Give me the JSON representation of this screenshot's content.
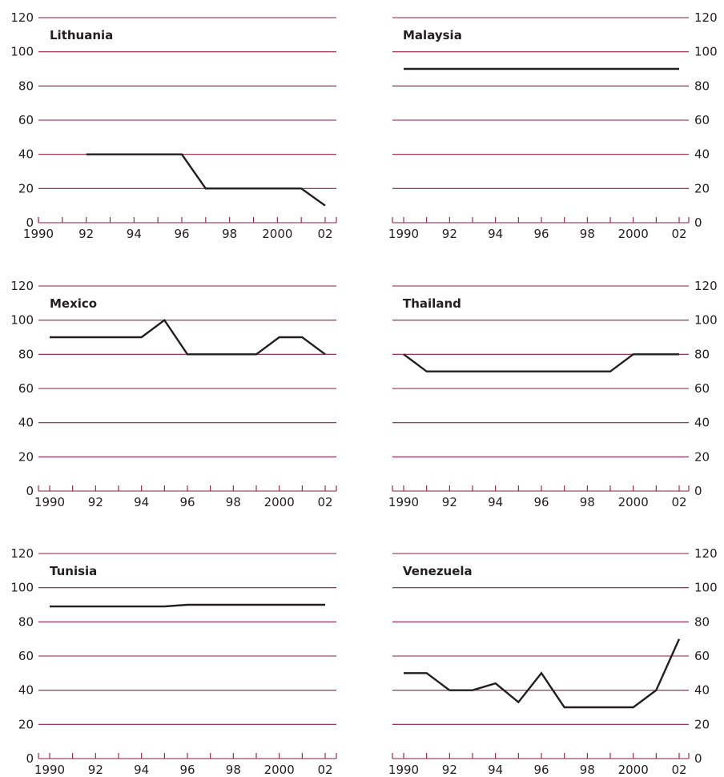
{
  "colors": {
    "gridline": "#8c1d40",
    "series": "#231f20",
    "text": "#231f20",
    "background": "#ffffff"
  },
  "chart_data": [
    {
      "type": "line",
      "title": "Lithuania",
      "y_axis_side": "left",
      "ylim": [
        0,
        120
      ],
      "y_ticks": [
        "0",
        "20",
        "40",
        "60",
        "80",
        "100",
        "120"
      ],
      "x_range": [
        1990,
        2002
      ],
      "x_ticks": [
        {
          "year": 1990,
          "label": "1990"
        },
        {
          "year": 1992,
          "label": "92"
        },
        {
          "year": 1994,
          "label": "94"
        },
        {
          "year": 1996,
          "label": "96"
        },
        {
          "year": 1998,
          "label": "98"
        },
        {
          "year": 2000,
          "label": "2000"
        },
        {
          "year": 2002,
          "label": "02"
        }
      ],
      "grid": true,
      "series": [
        {
          "x": [
            1992,
            1993,
            1994,
            1995,
            1996,
            1997,
            1998,
            1999,
            2000,
            2001,
            2002
          ],
          "y": [
            40,
            40,
            40,
            40,
            40,
            20,
            20,
            20,
            20,
            20,
            10
          ]
        }
      ]
    },
    {
      "type": "line",
      "title": "Malaysia",
      "y_axis_side": "right",
      "ylim": [
        0,
        120
      ],
      "y_ticks": [
        "0",
        "20",
        "40",
        "60",
        "80",
        "100",
        "120"
      ],
      "x_range": [
        1990,
        2002
      ],
      "x_ticks": [
        {
          "year": 1990,
          "label": "1990"
        },
        {
          "year": 1992,
          "label": "92"
        },
        {
          "year": 1994,
          "label": "94"
        },
        {
          "year": 1996,
          "label": "96"
        },
        {
          "year": 1998,
          "label": "98"
        },
        {
          "year": 2000,
          "label": "2000"
        },
        {
          "year": 2002,
          "label": "02"
        }
      ],
      "grid": true,
      "series": [
        {
          "x": [
            1990,
            1991,
            1992,
            1993,
            1994,
            1995,
            1996,
            1997,
            1998,
            1999,
            2000,
            2001,
            2002
          ],
          "y": [
            90,
            90,
            90,
            90,
            90,
            90,
            90,
            90,
            90,
            90,
            90,
            90,
            90
          ]
        }
      ]
    },
    {
      "type": "line",
      "title": "Mexico",
      "y_axis_side": "left",
      "ylim": [
        0,
        120
      ],
      "y_ticks": [
        "0",
        "20",
        "40",
        "60",
        "80",
        "100",
        "120"
      ],
      "x_range": [
        1990,
        2002
      ],
      "x_ticks": [
        {
          "year": 1990,
          "label": "1990"
        },
        {
          "year": 1992,
          "label": "92"
        },
        {
          "year": 1994,
          "label": "94"
        },
        {
          "year": 1996,
          "label": "96"
        },
        {
          "year": 1998,
          "label": "98"
        },
        {
          "year": 2000,
          "label": "2000"
        },
        {
          "year": 2002,
          "label": "02"
        }
      ],
      "grid": true,
      "series": [
        {
          "x": [
            1990,
            1991,
            1992,
            1993,
            1994,
            1995,
            1996,
            1997,
            1998,
            1999,
            2000,
            2001,
            2002
          ],
          "y": [
            90,
            90,
            90,
            90,
            90,
            100,
            80,
            80,
            80,
            80,
            90,
            90,
            80
          ]
        }
      ]
    },
    {
      "type": "line",
      "title": "Thailand",
      "y_axis_side": "right",
      "ylim": [
        0,
        120
      ],
      "y_ticks": [
        "0",
        "20",
        "40",
        "60",
        "80",
        "100",
        "120"
      ],
      "x_range": [
        1990,
        2002
      ],
      "x_ticks": [
        {
          "year": 1990,
          "label": "1990"
        },
        {
          "year": 1992,
          "label": "92"
        },
        {
          "year": 1994,
          "label": "94"
        },
        {
          "year": 1996,
          "label": "96"
        },
        {
          "year": 1998,
          "label": "98"
        },
        {
          "year": 2000,
          "label": "2000"
        },
        {
          "year": 2002,
          "label": "02"
        }
      ],
      "grid": true,
      "series": [
        {
          "x": [
            1990,
            1991,
            1992,
            1993,
            1994,
            1995,
            1996,
            1997,
            1998,
            1999,
            2000,
            2001,
            2002
          ],
          "y": [
            80,
            70,
            70,
            70,
            70,
            70,
            70,
            70,
            70,
            70,
            80,
            80,
            80
          ]
        }
      ]
    },
    {
      "type": "line",
      "title": "Tunisia",
      "y_axis_side": "left",
      "ylim": [
        0,
        120
      ],
      "y_ticks": [
        "0",
        "20",
        "40",
        "60",
        "80",
        "100",
        "120"
      ],
      "x_range": [
        1990,
        2002
      ],
      "x_ticks": [
        {
          "year": 1990,
          "label": "1990"
        },
        {
          "year": 1992,
          "label": "92"
        },
        {
          "year": 1994,
          "label": "94"
        },
        {
          "year": 1996,
          "label": "96"
        },
        {
          "year": 1998,
          "label": "98"
        },
        {
          "year": 2000,
          "label": "2000"
        },
        {
          "year": 2002,
          "label": "02"
        }
      ],
      "grid": true,
      "series": [
        {
          "x": [
            1990,
            1991,
            1992,
            1993,
            1994,
            1995,
            1996,
            1997,
            1998,
            1999,
            2000,
            2001,
            2002
          ],
          "y": [
            89,
            89,
            89,
            89,
            89,
            89,
            90,
            90,
            90,
            90,
            90,
            90,
            90
          ]
        }
      ]
    },
    {
      "type": "line",
      "title": "Venezuela",
      "y_axis_side": "right",
      "ylim": [
        0,
        120
      ],
      "y_ticks": [
        "0",
        "20",
        "40",
        "60",
        "80",
        "100",
        "120"
      ],
      "x_range": [
        1990,
        2002
      ],
      "x_ticks": [
        {
          "year": 1990,
          "label": "1990"
        },
        {
          "year": 1992,
          "label": "92"
        },
        {
          "year": 1994,
          "label": "94"
        },
        {
          "year": 1996,
          "label": "96"
        },
        {
          "year": 1998,
          "label": "98"
        },
        {
          "year": 2000,
          "label": "2000"
        },
        {
          "year": 2002,
          "label": "02"
        }
      ],
      "grid": true,
      "series": [
        {
          "x": [
            1990,
            1991,
            1992,
            1993,
            1994,
            1995,
            1996,
            1997,
            1998,
            1999,
            2000,
            2001,
            2002
          ],
          "y": [
            50,
            50,
            40,
            40,
            44,
            33,
            50,
            30,
            30,
            30,
            30,
            40,
            70
          ]
        }
      ]
    }
  ]
}
